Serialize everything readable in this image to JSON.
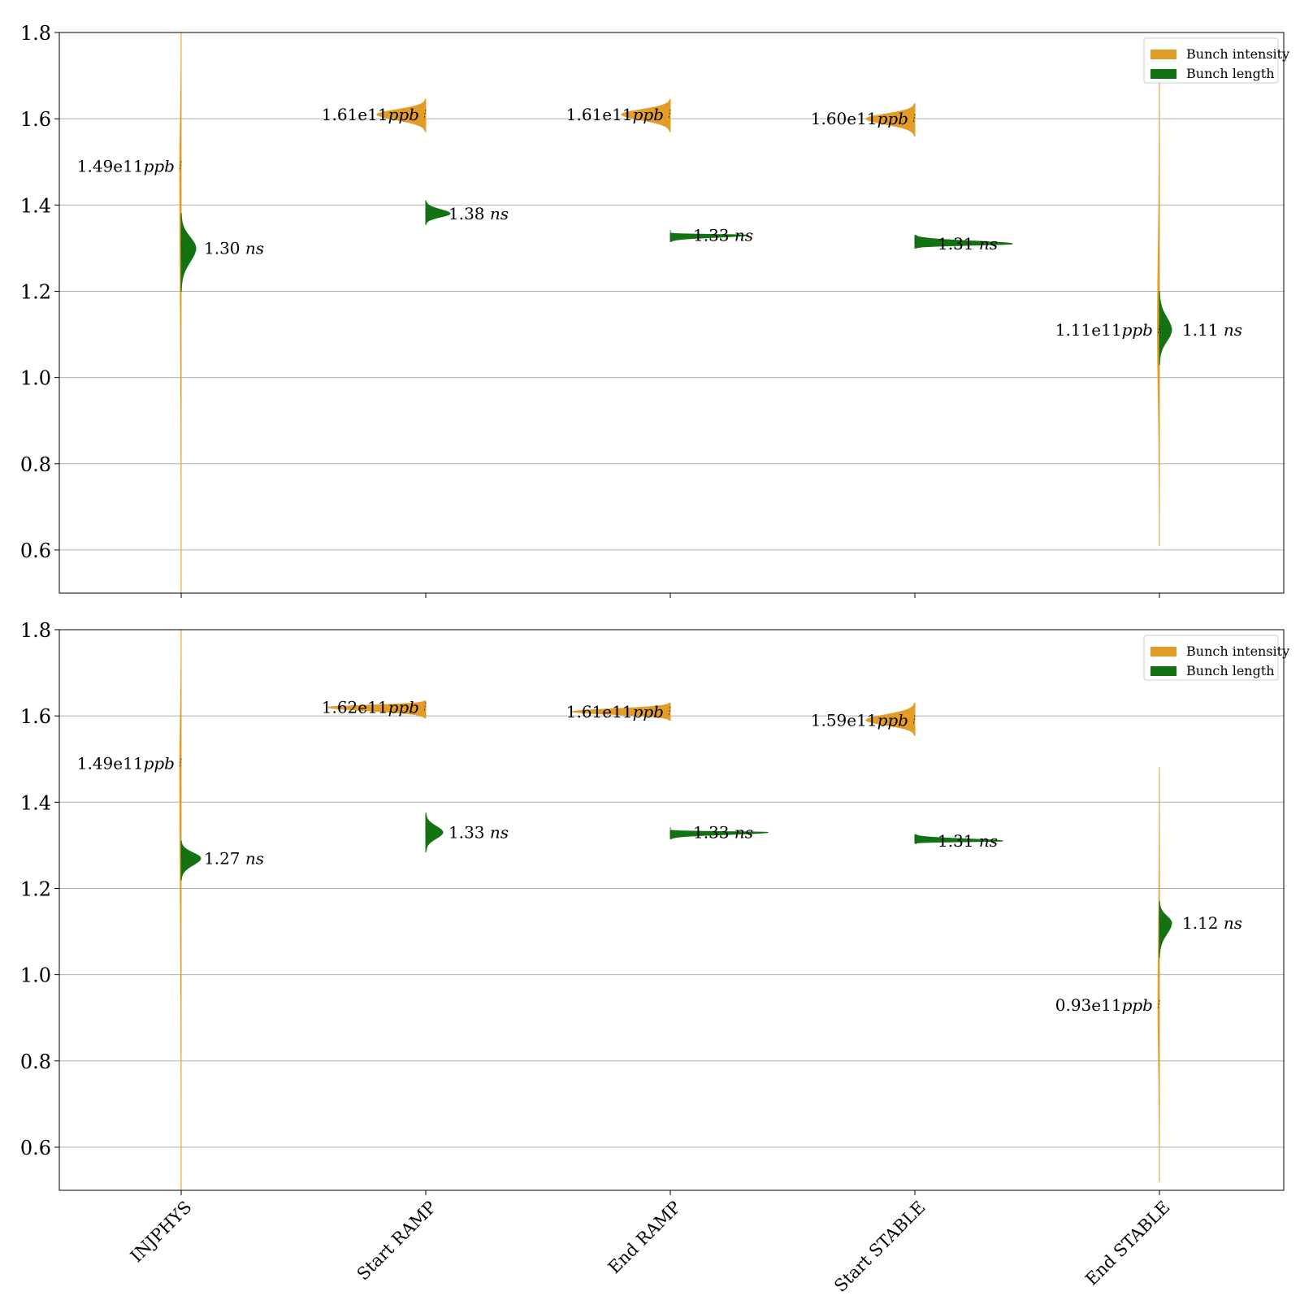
{
  "colors": {
    "intensity": "#E29D28",
    "length": "#137313",
    "grid": "#b0b0b0",
    "axis": "#000000"
  },
  "chart_data": [
    {
      "type": "violin",
      "categories": [
        "INJPHYS",
        "Start RAMP",
        "End RAMP",
        "Start STABLE",
        "End STABLE"
      ],
      "ylim": [
        0.5,
        1.8
      ],
      "yticks": [
        "0.6",
        "0.8",
        "1.0",
        "1.2",
        "1.4",
        "1.6",
        "1.8"
      ],
      "grid": "y",
      "legend": {
        "placement": "top-right",
        "entries": [
          "Bunch intensity",
          "Bunch length"
        ]
      },
      "series": [
        {
          "name": "Bunch intensity",
          "side": "left",
          "medians": [
            1.49,
            1.61,
            1.61,
            1.6,
            1.11
          ],
          "labels": [
            "1.49e11",
            "1.61e11",
            "1.61e11",
            "1.60e11",
            "1.11e11"
          ],
          "unit": "ppb",
          "ranges": [
            [
              0.5,
              1.8
            ],
            [
              1.57,
              1.645
            ],
            [
              1.57,
              1.645
            ],
            [
              1.56,
              1.635
            ],
            [
              0.61,
              1.7
            ]
          ],
          "max_widths": [
            0.006,
            0.2,
            0.2,
            0.2,
            0.008
          ]
        },
        {
          "name": "Bunch length",
          "side": "right",
          "medians": [
            1.3,
            1.38,
            1.33,
            1.31,
            1.11
          ],
          "labels": [
            "1.30",
            "1.38",
            "1.33",
            "1.31",
            "1.11"
          ],
          "unit": "ns",
          "ranges": [
            [
              1.2,
              1.38
            ],
            [
              1.355,
              1.41
            ],
            [
              1.315,
              1.335
            ],
            [
              1.3,
              1.33
            ],
            [
              1.03,
              1.2
            ]
          ],
          "max_widths": [
            0.06,
            0.1,
            0.32,
            0.4,
            0.05
          ]
        }
      ]
    },
    {
      "type": "violin",
      "categories": [
        "INJPHYS",
        "Start RAMP",
        "End RAMP",
        "Start STABLE",
        "End STABLE"
      ],
      "ylim": [
        0.5,
        1.8
      ],
      "yticks": [
        "0.6",
        "0.8",
        "1.0",
        "1.2",
        "1.4",
        "1.6",
        "1.8"
      ],
      "grid": "y",
      "legend": {
        "placement": "top-right",
        "entries": [
          "Bunch intensity",
          "Bunch length"
        ]
      },
      "series": [
        {
          "name": "Bunch intensity",
          "side": "left",
          "medians": [
            1.49,
            1.62,
            1.61,
            1.59,
            0.93
          ],
          "labels": [
            "1.49e11",
            "1.62e11",
            "1.61e11",
            "1.59e11",
            "0.93e11"
          ],
          "unit": "ppb",
          "ranges": [
            [
              0.5,
              1.8
            ],
            [
              1.595,
              1.635
            ],
            [
              1.59,
              1.63
            ],
            [
              1.555,
              1.63
            ],
            [
              0.52,
              1.48
            ]
          ],
          "max_widths": [
            0.006,
            0.4,
            0.4,
            0.2,
            0.006
          ]
        },
        {
          "name": "Bunch length",
          "side": "right",
          "medians": [
            1.27,
            1.33,
            1.33,
            1.31,
            1.12
          ],
          "labels": [
            "1.27",
            "1.33",
            "1.33",
            "1.31",
            "1.12"
          ],
          "unit": "ns",
          "ranges": [
            [
              1.22,
              1.31
            ],
            [
              1.285,
              1.375
            ],
            [
              1.315,
              1.335
            ],
            [
              1.305,
              1.325
            ],
            [
              1.04,
              1.17
            ]
          ],
          "max_widths": [
            0.08,
            0.07,
            0.4,
            0.36,
            0.05
          ]
        }
      ]
    }
  ]
}
